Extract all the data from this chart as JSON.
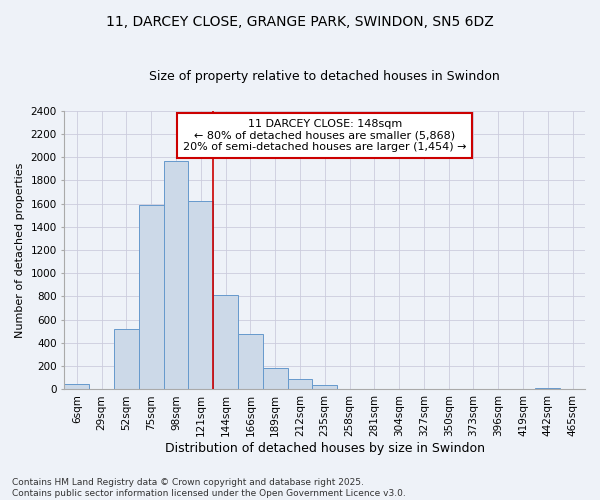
{
  "title": "11, DARCEY CLOSE, GRANGE PARK, SWINDON, SN5 6DZ",
  "subtitle": "Size of property relative to detached houses in Swindon",
  "xlabel": "Distribution of detached houses by size in Swindon",
  "ylabel": "Number of detached properties",
  "categories": [
    "6sqm",
    "29sqm",
    "52sqm",
    "75sqm",
    "98sqm",
    "121sqm",
    "144sqm",
    "166sqm",
    "189sqm",
    "212sqm",
    "235sqm",
    "258sqm",
    "281sqm",
    "304sqm",
    "327sqm",
    "350sqm",
    "373sqm",
    "396sqm",
    "419sqm",
    "442sqm",
    "465sqm"
  ],
  "values": [
    50,
    0,
    520,
    1590,
    1970,
    1620,
    810,
    480,
    185,
    90,
    35,
    0,
    0,
    0,
    0,
    0,
    0,
    0,
    0,
    15,
    0
  ],
  "bar_color": "#ccd9e8",
  "bar_edge_color": "#6699cc",
  "highlight_line_index": 6,
  "annotation_box_text": "11 DARCEY CLOSE: 148sqm\n← 80% of detached houses are smaller (5,868)\n20% of semi-detached houses are larger (1,454) →",
  "annotation_box_color": "#ffffff",
  "annotation_box_edge_color": "#cc0000",
  "highlight_line_color": "#cc0000",
  "ylim": [
    0,
    2400
  ],
  "yticks": [
    0,
    200,
    400,
    600,
    800,
    1000,
    1200,
    1400,
    1600,
    1800,
    2000,
    2200,
    2400
  ],
  "grid_color": "#ccccdd",
  "background_color": "#eef2f8",
  "plot_bg_color": "#eef2f8",
  "footnote": "Contains HM Land Registry data © Crown copyright and database right 2025.\nContains public sector information licensed under the Open Government Licence v3.0.",
  "title_fontsize": 10,
  "subtitle_fontsize": 9,
  "xlabel_fontsize": 9,
  "ylabel_fontsize": 8,
  "tick_fontsize": 7.5,
  "annotation_fontsize": 8,
  "footnote_fontsize": 6.5
}
